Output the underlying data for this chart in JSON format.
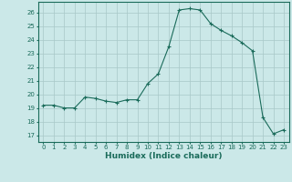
{
  "x": [
    0,
    1,
    2,
    3,
    4,
    5,
    6,
    7,
    8,
    9,
    10,
    11,
    12,
    13,
    14,
    15,
    16,
    17,
    18,
    19,
    20,
    21,
    22,
    23
  ],
  "y": [
    19.2,
    19.2,
    19.0,
    19.0,
    19.8,
    19.7,
    19.5,
    19.4,
    19.6,
    19.6,
    20.8,
    21.5,
    23.5,
    26.2,
    26.3,
    26.2,
    25.2,
    24.7,
    24.3,
    23.8,
    23.2,
    18.3,
    17.1,
    17.4
  ],
  "line_color": "#1a6b5a",
  "marker": "+",
  "markersize": 3.5,
  "linewidth": 0.8,
  "xlabel": "Humidex (Indice chaleur)",
  "xlabel_fontsize": 6.5,
  "xlim": [
    -0.5,
    23.5
  ],
  "ylim": [
    16.5,
    26.8
  ],
  "yticks": [
    17,
    18,
    19,
    20,
    21,
    22,
    23,
    24,
    25,
    26
  ],
  "xticks": [
    0,
    1,
    2,
    3,
    4,
    5,
    6,
    7,
    8,
    9,
    10,
    11,
    12,
    13,
    14,
    15,
    16,
    17,
    18,
    19,
    20,
    21,
    22,
    23
  ],
  "bg_color": "#cbe8e8",
  "grid_color": "#a8c8c8",
  "tick_fontsize": 5.0,
  "text_color": "#1a6b5a"
}
